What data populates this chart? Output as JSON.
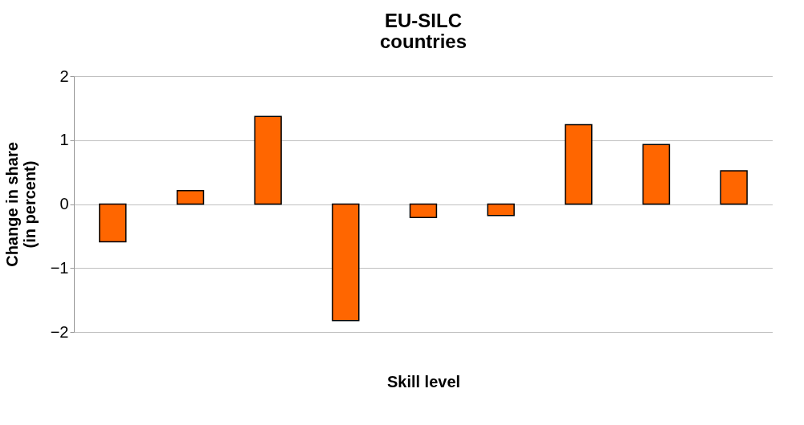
{
  "chart_data": {
    "type": "bar",
    "title": [
      "EU-SILC",
      "countries"
    ],
    "xlabel": "Skill level",
    "ylabel": [
      "Change in share",
      "(in percent)"
    ],
    "categories": [
      null,
      null,
      null,
      null,
      null,
      null,
      null,
      null,
      null
    ],
    "values": [
      -0.59,
      0.21,
      1.37,
      -1.82,
      -0.21,
      -0.18,
      1.24,
      0.93,
      0.52
    ],
    "color": "#ff6600",
    "ylim": [
      -2,
      2
    ],
    "yticks": [
      -2,
      -1,
      0,
      1,
      2
    ],
    "grid": "y"
  }
}
